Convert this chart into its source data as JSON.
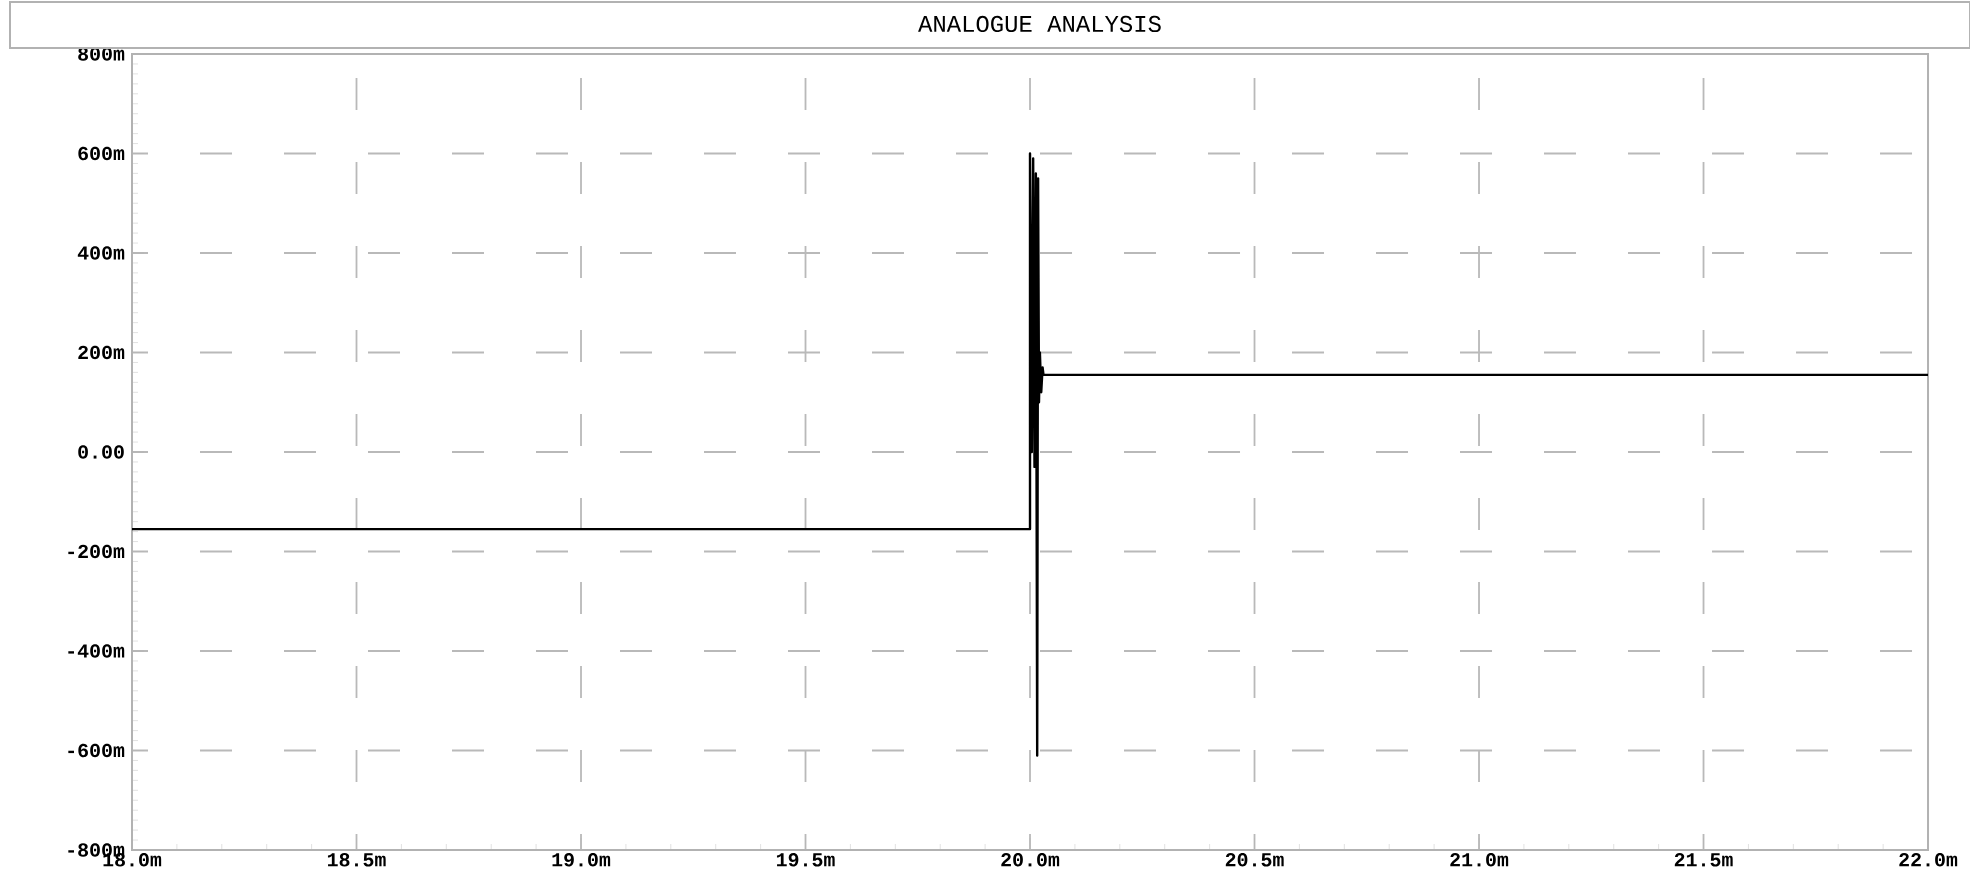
{
  "chart_data": {
    "type": "line",
    "title": "ANALOGUE ANALYSIS",
    "series": [
      {
        "color": "#000000",
        "x": [
          18.0,
          20.0,
          20.0,
          20.004,
          20.007,
          20.01,
          20.013,
          20.016,
          20.018,
          20.02,
          20.022,
          20.025,
          20.028,
          20.03,
          22.0
        ],
        "values": [
          -155,
          -155,
          600,
          0,
          590,
          -30,
          560,
          -610,
          550,
          100,
          200,
          120,
          170,
          155,
          155
        ]
      }
    ],
    "xlim": [
      18.0,
      22.0
    ],
    "xticks": [
      {
        "value": 18.0,
        "label": "18.0m"
      },
      {
        "value": 18.5,
        "label": "18.5m"
      },
      {
        "value": 19.0,
        "label": "19.0m"
      },
      {
        "value": 19.5,
        "label": "19.5m"
      },
      {
        "value": 20.0,
        "label": "20.0m"
      },
      {
        "value": 20.5,
        "label": "20.5m"
      },
      {
        "value": 21.0,
        "label": "21.0m"
      },
      {
        "value": 21.5,
        "label": "21.5m"
      },
      {
        "value": 22.0,
        "label": "22.0m"
      }
    ],
    "ylim": [
      -800,
      800
    ],
    "yticks": [
      {
        "value": -800,
        "label": "-800m"
      },
      {
        "value": -600,
        "label": "-600m"
      },
      {
        "value": -400,
        "label": "-400m"
      },
      {
        "value": -200,
        "label": "-200m"
      },
      {
        "value": 0,
        "label": "0.00"
      },
      {
        "value": 200,
        "label": "200m"
      },
      {
        "value": 400,
        "label": "400m"
      },
      {
        "value": 600,
        "label": "600m"
      },
      {
        "value": 800,
        "label": "800m"
      }
    ],
    "grid": true,
    "marker": "none",
    "line_style": "solid"
  }
}
